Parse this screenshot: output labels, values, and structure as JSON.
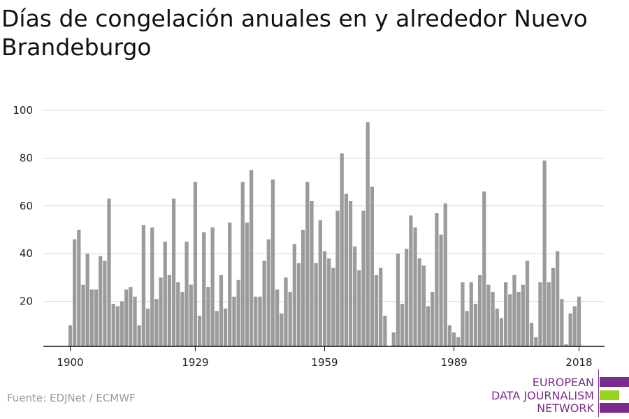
{
  "title": "Días de congelación anuales en y alrededor Nuevo Brandeburgo",
  "source": "Fuente: EDJNet / ECMWF",
  "logo": {
    "line1": "EUROPEAN",
    "line2": "DATA JOURNALISM",
    "line3": "NETWORK",
    "text_color": "#7b2b8c",
    "bar_purple": "#7b2b8c",
    "bar_green": "#9bd21e"
  },
  "colors": {
    "bar": "#9b9b9b",
    "grid": "#d9d9d9",
    "axis": "#111111"
  },
  "chart_data": {
    "type": "bar",
    "title": "Días de congelación anuales en y alrededor Nuevo Brandeburgo",
    "xlabel": "",
    "ylabel": "",
    "x_start": 1900,
    "x_end": 2018,
    "ylim": [
      0,
      100
    ],
    "yticks": [
      20,
      40,
      60,
      80,
      100
    ],
    "xticks": [
      1900,
      1929,
      1959,
      1989,
      2018
    ],
    "grid": true,
    "values": [
      10,
      46,
      50,
      27,
      40,
      25,
      25,
      39,
      37,
      63,
      19,
      18,
      20,
      25,
      26,
      22,
      10,
      52,
      17,
      51,
      21,
      30,
      45,
      31,
      63,
      28,
      24,
      45,
      27,
      70,
      14,
      49,
      26,
      51,
      16,
      31,
      17,
      53,
      22,
      29,
      70,
      53,
      75,
      22,
      22,
      37,
      46,
      71,
      25,
      15,
      30,
      24,
      44,
      36,
      50,
      70,
      62,
      36,
      54,
      41,
      38,
      34,
      58,
      82,
      65,
      62,
      43,
      33,
      58,
      95,
      68,
      31,
      34,
      14,
      0,
      7,
      40,
      19,
      42,
      56,
      51,
      38,
      35,
      18,
      24,
      57,
      48,
      61,
      10,
      7,
      5,
      28,
      16,
      28,
      19,
      31,
      66,
      27,
      24,
      17,
      13,
      28,
      23,
      31,
      24,
      27,
      37,
      11,
      5,
      28,
      79,
      28,
      34,
      41,
      21,
      2,
      15,
      18,
      22
    ]
  }
}
